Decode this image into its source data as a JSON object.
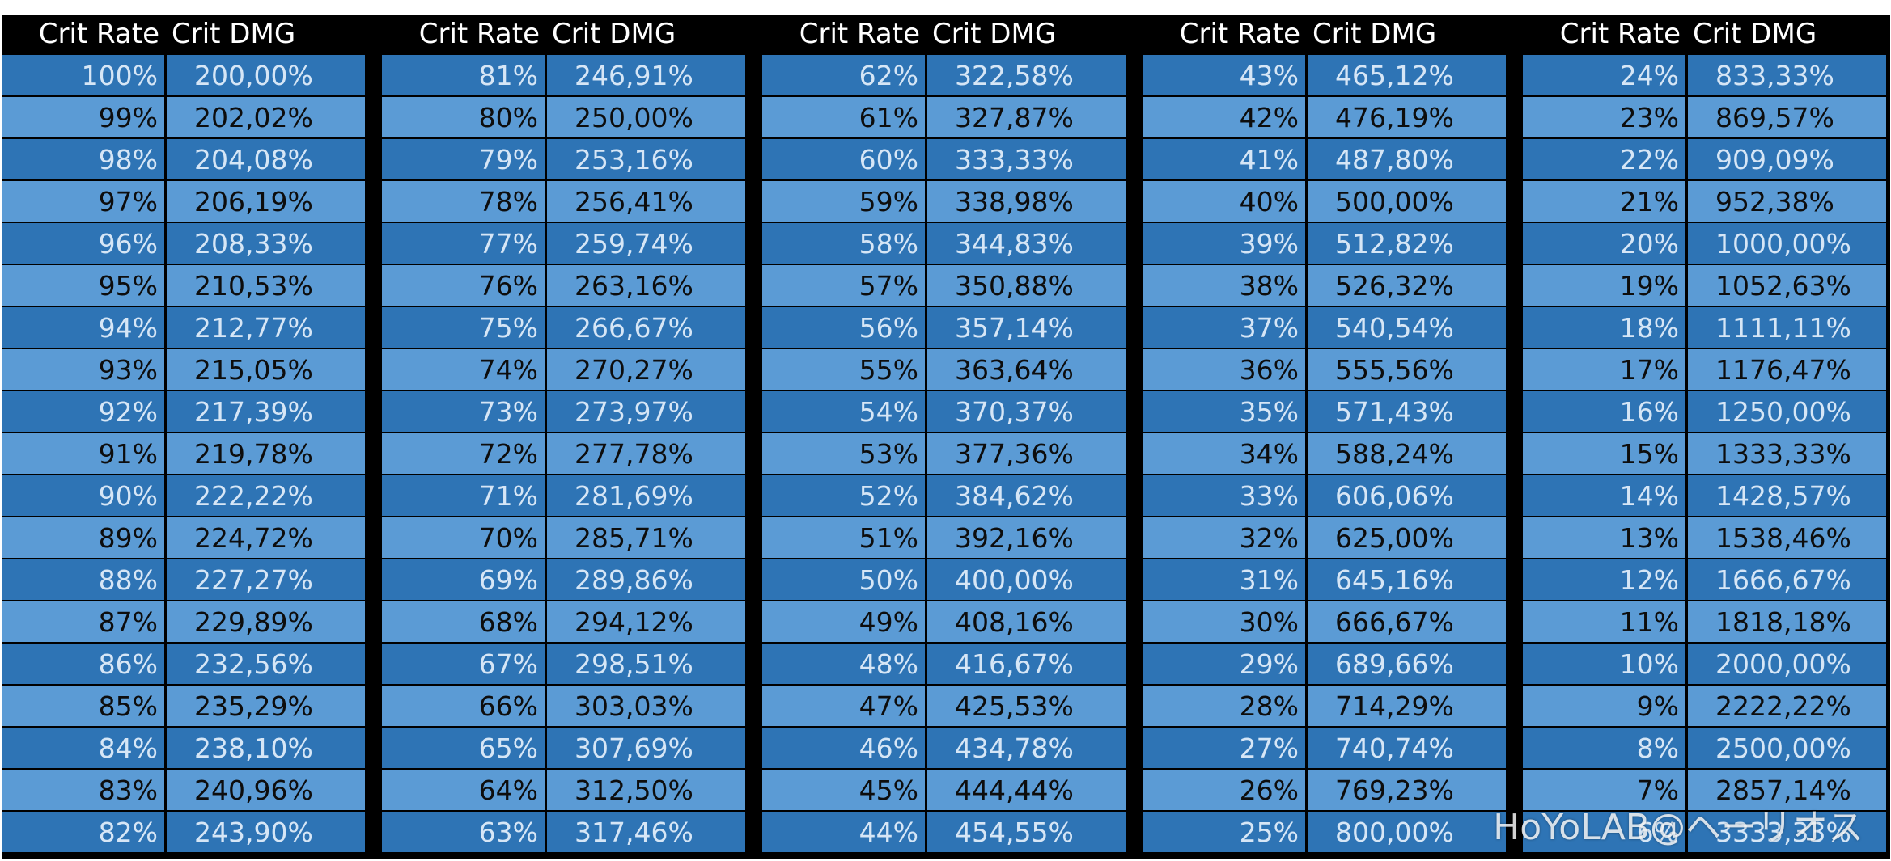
{
  "header": {
    "rate_label": "Crit Rate",
    "dmg_label": "Crit DMG"
  },
  "colors": {
    "header_bg": "#000000",
    "header_text": "#ffffff",
    "row_dark": "#2e74b5",
    "row_dark_text": "#d6e6f6",
    "row_light": "#5b9bd5",
    "row_light_text": "#0d0d0d",
    "grid_lines": "#000000"
  },
  "groups": [
    {
      "rows": [
        {
          "rate": "100%",
          "dmg": "200,00%"
        },
        {
          "rate": "99%",
          "dmg": "202,02%"
        },
        {
          "rate": "98%",
          "dmg": "204,08%"
        },
        {
          "rate": "97%",
          "dmg": "206,19%"
        },
        {
          "rate": "96%",
          "dmg": "208,33%"
        },
        {
          "rate": "95%",
          "dmg": "210,53%"
        },
        {
          "rate": "94%",
          "dmg": "212,77%"
        },
        {
          "rate": "93%",
          "dmg": "215,05%"
        },
        {
          "rate": "92%",
          "dmg": "217,39%"
        },
        {
          "rate": "91%",
          "dmg": "219,78%"
        },
        {
          "rate": "90%",
          "dmg": "222,22%"
        },
        {
          "rate": "89%",
          "dmg": "224,72%"
        },
        {
          "rate": "88%",
          "dmg": "227,27%"
        },
        {
          "rate": "87%",
          "dmg": "229,89%"
        },
        {
          "rate": "86%",
          "dmg": "232,56%"
        },
        {
          "rate": "85%",
          "dmg": "235,29%"
        },
        {
          "rate": "84%",
          "dmg": "238,10%"
        },
        {
          "rate": "83%",
          "dmg": "240,96%"
        },
        {
          "rate": "82%",
          "dmg": "243,90%"
        }
      ]
    },
    {
      "rows": [
        {
          "rate": "81%",
          "dmg": "246,91%"
        },
        {
          "rate": "80%",
          "dmg": "250,00%"
        },
        {
          "rate": "79%",
          "dmg": "253,16%"
        },
        {
          "rate": "78%",
          "dmg": "256,41%"
        },
        {
          "rate": "77%",
          "dmg": "259,74%"
        },
        {
          "rate": "76%",
          "dmg": "263,16%"
        },
        {
          "rate": "75%",
          "dmg": "266,67%"
        },
        {
          "rate": "74%",
          "dmg": "270,27%"
        },
        {
          "rate": "73%",
          "dmg": "273,97%"
        },
        {
          "rate": "72%",
          "dmg": "277,78%"
        },
        {
          "rate": "71%",
          "dmg": "281,69%"
        },
        {
          "rate": "70%",
          "dmg": "285,71%"
        },
        {
          "rate": "69%",
          "dmg": "289,86%"
        },
        {
          "rate": "68%",
          "dmg": "294,12%"
        },
        {
          "rate": "67%",
          "dmg": "298,51%"
        },
        {
          "rate": "66%",
          "dmg": "303,03%"
        },
        {
          "rate": "65%",
          "dmg": "307,69%"
        },
        {
          "rate": "64%",
          "dmg": "312,50%"
        },
        {
          "rate": "63%",
          "dmg": "317,46%"
        }
      ]
    },
    {
      "rows": [
        {
          "rate": "62%",
          "dmg": "322,58%"
        },
        {
          "rate": "61%",
          "dmg": "327,87%"
        },
        {
          "rate": "60%",
          "dmg": "333,33%"
        },
        {
          "rate": "59%",
          "dmg": "338,98%"
        },
        {
          "rate": "58%",
          "dmg": "344,83%"
        },
        {
          "rate": "57%",
          "dmg": "350,88%"
        },
        {
          "rate": "56%",
          "dmg": "357,14%"
        },
        {
          "rate": "55%",
          "dmg": "363,64%"
        },
        {
          "rate": "54%",
          "dmg": "370,37%"
        },
        {
          "rate": "53%",
          "dmg": "377,36%"
        },
        {
          "rate": "52%",
          "dmg": "384,62%"
        },
        {
          "rate": "51%",
          "dmg": "392,16%"
        },
        {
          "rate": "50%",
          "dmg": "400,00%"
        },
        {
          "rate": "49%",
          "dmg": "408,16%"
        },
        {
          "rate": "48%",
          "dmg": "416,67%"
        },
        {
          "rate": "47%",
          "dmg": "425,53%"
        },
        {
          "rate": "46%",
          "dmg": "434,78%"
        },
        {
          "rate": "45%",
          "dmg": "444,44%"
        },
        {
          "rate": "44%",
          "dmg": "454,55%"
        }
      ]
    },
    {
      "rows": [
        {
          "rate": "43%",
          "dmg": "465,12%"
        },
        {
          "rate": "42%",
          "dmg": "476,19%"
        },
        {
          "rate": "41%",
          "dmg": "487,80%"
        },
        {
          "rate": "40%",
          "dmg": "500,00%"
        },
        {
          "rate": "39%",
          "dmg": "512,82%"
        },
        {
          "rate": "38%",
          "dmg": "526,32%"
        },
        {
          "rate": "37%",
          "dmg": "540,54%"
        },
        {
          "rate": "36%",
          "dmg": "555,56%"
        },
        {
          "rate": "35%",
          "dmg": "571,43%"
        },
        {
          "rate": "34%",
          "dmg": "588,24%"
        },
        {
          "rate": "33%",
          "dmg": "606,06%"
        },
        {
          "rate": "32%",
          "dmg": "625,00%"
        },
        {
          "rate": "31%",
          "dmg": "645,16%"
        },
        {
          "rate": "30%",
          "dmg": "666,67%"
        },
        {
          "rate": "29%",
          "dmg": "689,66%"
        },
        {
          "rate": "28%",
          "dmg": "714,29%"
        },
        {
          "rate": "27%",
          "dmg": "740,74%"
        },
        {
          "rate": "26%",
          "dmg": "769,23%"
        },
        {
          "rate": "25%",
          "dmg": "800,00%"
        }
      ]
    },
    {
      "rows": [
        {
          "rate": "24%",
          "dmg": "833,33%"
        },
        {
          "rate": "23%",
          "dmg": "869,57%"
        },
        {
          "rate": "22%",
          "dmg": "909,09%"
        },
        {
          "rate": "21%",
          "dmg": "952,38%"
        },
        {
          "rate": "20%",
          "dmg": "1000,00%"
        },
        {
          "rate": "19%",
          "dmg": "1052,63%"
        },
        {
          "rate": "18%",
          "dmg": "1111,11%"
        },
        {
          "rate": "17%",
          "dmg": "1176,47%"
        },
        {
          "rate": "16%",
          "dmg": "1250,00%"
        },
        {
          "rate": "15%",
          "dmg": "1333,33%"
        },
        {
          "rate": "14%",
          "dmg": "1428,57%"
        },
        {
          "rate": "13%",
          "dmg": "1538,46%"
        },
        {
          "rate": "12%",
          "dmg": "1666,67%"
        },
        {
          "rate": "11%",
          "dmg": "1818,18%"
        },
        {
          "rate": "10%",
          "dmg": "2000,00%"
        },
        {
          "rate": "9%",
          "dmg": "2222,22%"
        },
        {
          "rate": "8%",
          "dmg": "2500,00%"
        },
        {
          "rate": "7%",
          "dmg": "2857,14%"
        },
        {
          "rate": "6%",
          "dmg": "3333,33%"
        }
      ]
    }
  ],
  "watermark": "HoYoLAB@ヘーリオス"
}
